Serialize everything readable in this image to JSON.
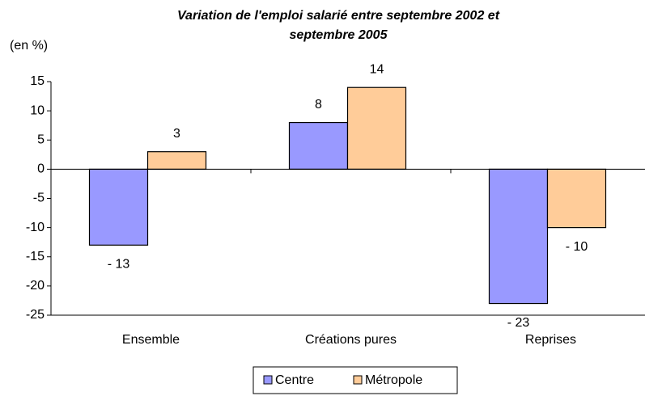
{
  "chart_data": {
    "type": "bar",
    "title": "Variation de l'emploi salarié entre septembre 2002 et septembre 2005",
    "y_label": "(en %)",
    "categories": [
      "Ensemble",
      "Créations pures",
      "Reprises"
    ],
    "series": [
      {
        "name": "Centre",
        "color": "#9999ff",
        "values": [
          -13,
          8,
          -23
        ],
        "value_labels": [
          "- 13",
          "8",
          "- 23"
        ]
      },
      {
        "name": "Métropole",
        "color": "#ffcc99",
        "values": [
          3,
          14,
          -10
        ],
        "value_labels": [
          "3",
          "14",
          "- 10"
        ]
      }
    ],
    "ylim": [
      -25,
      15
    ],
    "yticks": [
      -25,
      -20,
      -15,
      -10,
      -5,
      0,
      5,
      10,
      15
    ],
    "grid": false,
    "legend": "bottom"
  }
}
